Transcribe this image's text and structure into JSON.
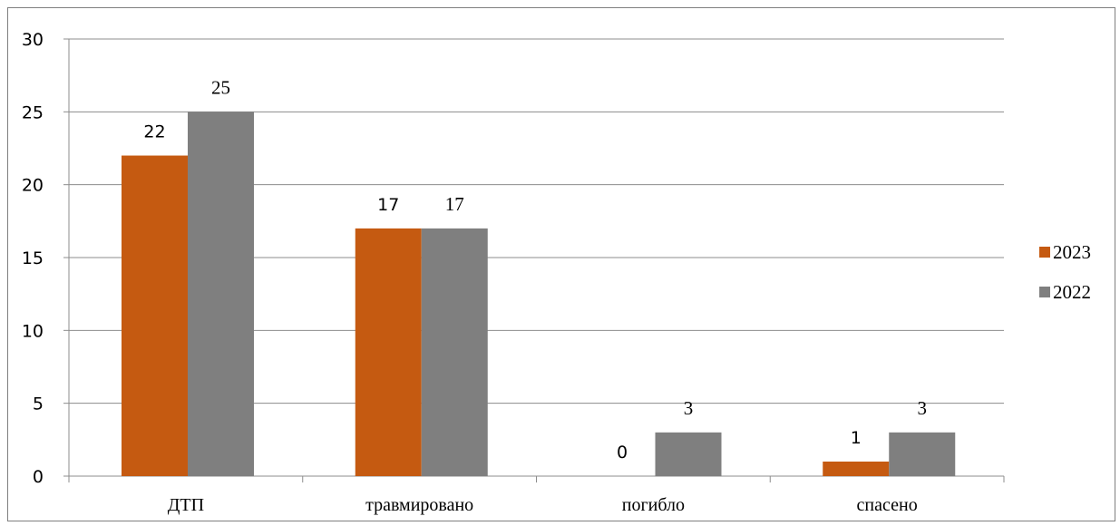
{
  "chart_data": {
    "type": "bar",
    "title": "",
    "xlabel": "",
    "ylabel": "",
    "categories": [
      "ДТП",
      "травмировано",
      "погибло",
      "спасено"
    ],
    "series": [
      {
        "name": "2023",
        "values": [
          22,
          17,
          0,
          1
        ],
        "color": "#c55a11"
      },
      {
        "name": "2022",
        "values": [
          25,
          17,
          3,
          3
        ],
        "color": "#7f7f7f"
      }
    ],
    "ylim": [
      0,
      30
    ],
    "yticks": [
      "0",
      "5",
      "10",
      "15",
      "20",
      "25",
      "30"
    ],
    "grid": true,
    "legend": "right",
    "data_labels": true
  }
}
